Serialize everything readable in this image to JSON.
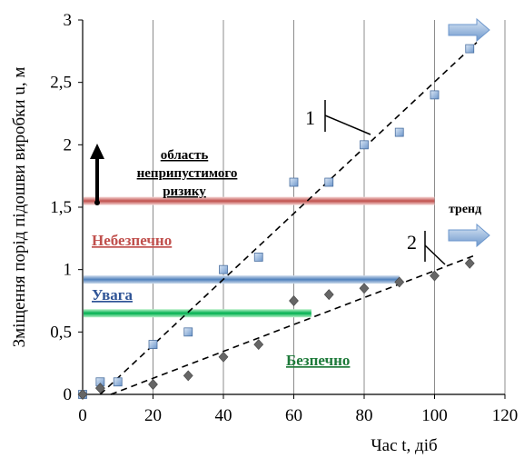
{
  "chart_data": {
    "type": "scatter",
    "xlabel": "Час t, діб",
    "ylabel": "Зміщення порід підошви виробки u, м",
    "xlim": [
      0,
      120
    ],
    "ylim": [
      0,
      3
    ],
    "x_ticks": [
      "0",
      "20",
      "40",
      "60",
      "80",
      "100",
      "120"
    ],
    "y_ticks": [
      "0",
      "0,5",
      "1",
      "1,5",
      "2",
      "2,5",
      "3"
    ],
    "grid": "vertical",
    "series": [
      {
        "name": "1",
        "marker": "square",
        "color": "#8eb4e3",
        "x": [
          0,
          5,
          10,
          20,
          30,
          40,
          50,
          60,
          70,
          80,
          90,
          100,
          110
        ],
        "y": [
          0,
          0.1,
          0.1,
          0.4,
          0.5,
          1.0,
          1.1,
          1.7,
          1.7,
          2.0,
          2.1,
          2.4,
          2.77
        ],
        "trend": [
          [
            5,
            0
          ],
          [
            112,
            2.82
          ]
        ]
      },
      {
        "name": "2",
        "marker": "diamond",
        "color": "#666666",
        "x": [
          0,
          5,
          20,
          30,
          40,
          50,
          60,
          70,
          80,
          90,
          100,
          110
        ],
        "y": [
          0,
          0.05,
          0.08,
          0.15,
          0.3,
          0.4,
          0.75,
          0.8,
          0.85,
          0.9,
          0.95,
          1.05
        ],
        "trend": [
          [
            8,
            0
          ],
          [
            112,
            1.12
          ]
        ]
      }
    ],
    "zones": [
      {
        "label": "Небезпечно",
        "color": "#c0504d",
        "band": 1.55,
        "x_end": 100
      },
      {
        "label": "Увага",
        "color": "#4f81bd",
        "band": 0.92,
        "x_end": 90
      },
      {
        "label": "Безпечно",
        "color": "#00b050",
        "band": 0.65,
        "x_end": 65
      }
    ],
    "annotations": {
      "unacceptable_line1": "область",
      "unacceptable_line2": "неприпустимого",
      "unacceptable_line3": "ризику",
      "trend": "тренд",
      "danger": "Небезпечно",
      "attention": "Увага",
      "safe": "Безпечно",
      "series1": "1",
      "series2": "2"
    }
  }
}
